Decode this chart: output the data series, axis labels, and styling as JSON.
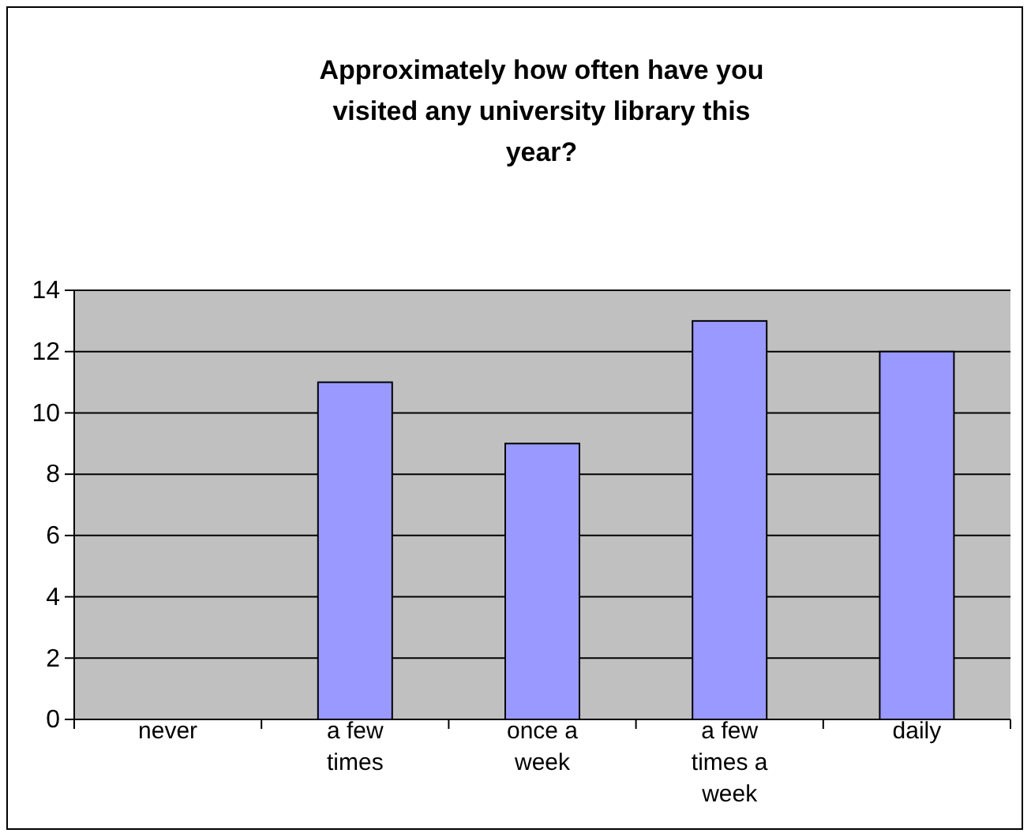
{
  "chart_data": {
    "type": "bar",
    "title": "Approximately how often have you visited any university library this year?",
    "categories": [
      "never",
      "a few times",
      "once a week",
      "a few times a week",
      "daily"
    ],
    "values": [
      0,
      11,
      9,
      13,
      12
    ],
    "color": "#9999ff",
    "ylim": [
      0,
      14
    ],
    "yticks": [
      0,
      2,
      4,
      6,
      8,
      10,
      12,
      14
    ],
    "grid": "y"
  }
}
